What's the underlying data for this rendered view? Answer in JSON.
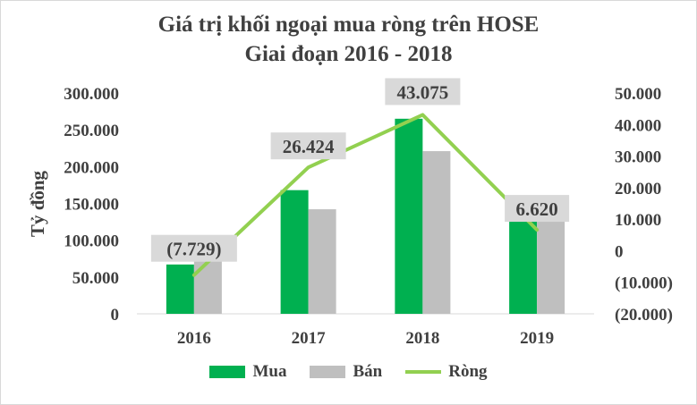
{
  "chart_data": {
    "type": "bar",
    "title": "Giá trị khối ngoại mua ròng trên HOSE",
    "subtitle": "Giai đoạn 2016 - 2018",
    "ylabel": "Tỷ đồng",
    "categories": [
      "2016",
      "2017",
      "2018",
      "2019"
    ],
    "ylim": [
      0,
      300000
    ],
    "y_ticks": [
      "0",
      "50.000",
      "100.000",
      "150.000",
      "200.000",
      "250.000",
      "300.000"
    ],
    "y2lim": [
      -20000,
      50000
    ],
    "y2_ticks": [
      "(20.000)",
      "(10.000)",
      "0",
      "10.000",
      "20.000",
      "30.000",
      "40.000",
      "50.000"
    ],
    "series": [
      {
        "name": "Mua",
        "type": "bar",
        "axis": "left",
        "color": "#00b050",
        "values": [
          67000,
          168000,
          265000,
          135000
        ]
      },
      {
        "name": "Bán",
        "type": "bar",
        "axis": "left",
        "color": "#bfbfbf",
        "values": [
          75000,
          142000,
          221000,
          128000
        ]
      },
      {
        "name": "Ròng",
        "type": "line",
        "axis": "right",
        "color": "#92d050",
        "values": [
          -7729,
          26424,
          43075,
          6620
        ],
        "labels": [
          "(7.729)",
          "26.424",
          "43.075",
          "6.620"
        ]
      }
    ],
    "grid": false,
    "legend": "bottom"
  }
}
